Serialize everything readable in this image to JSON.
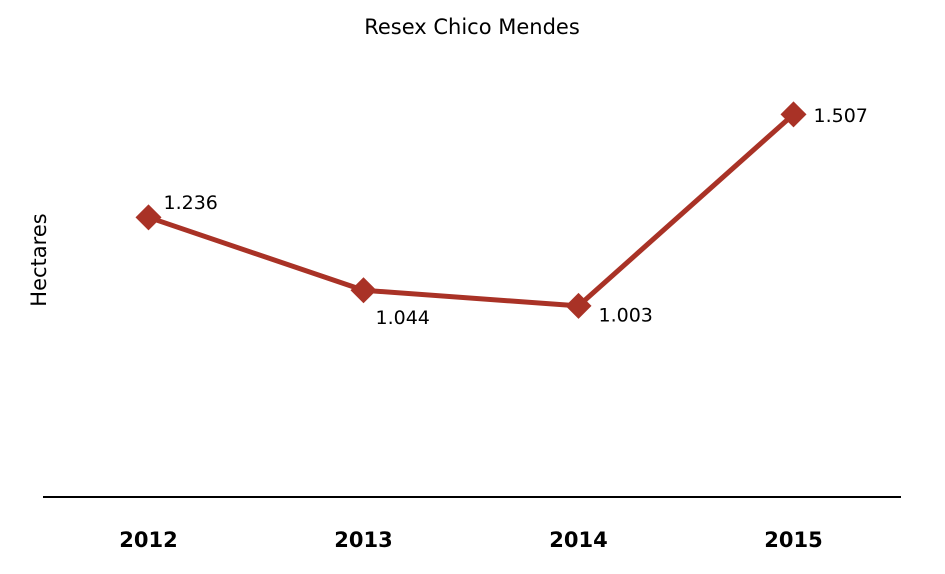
{
  "chart_data": {
    "type": "line",
    "title": "Resex Chico Mendes",
    "y_label": "Hectares",
    "categories": [
      "2012",
      "2013",
      "2014",
      "2015"
    ],
    "values": [
      1236,
      1044,
      1003,
      1507
    ],
    "value_labels": [
      "1.236",
      "1.044",
      "1.003",
      "1.507"
    ],
    "color": "#a93226",
    "ylim": [
      500,
      1600
    ]
  }
}
